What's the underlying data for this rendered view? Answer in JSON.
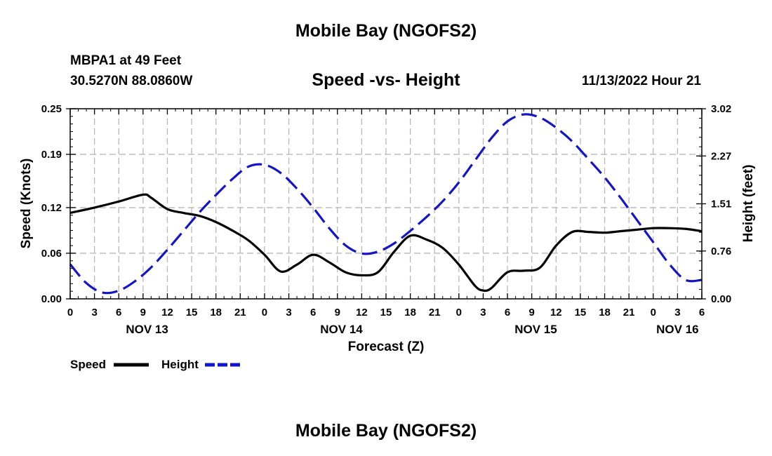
{
  "page": {
    "title": "Mobile Bay (NGOFS2)",
    "station": "MBPA1 at 49 Feet",
    "coordinates": "30.5270N  88.0860W",
    "subtitle": "Speed -vs- Height",
    "timestamp": "11/13/2022 Hour 21",
    "footer_title": "Mobile Bay (NGOFS2)"
  },
  "chart_data": {
    "type": "line",
    "title": "Speed -vs- Height",
    "xlabel": "Forecast (Z)",
    "ylabel": "Speed (Knots)",
    "y2label": "Height (feet)",
    "x_unit": "hours since Nov 13 00Z",
    "xlim": [
      0,
      78
    ],
    "ylim": [
      0,
      0.25
    ],
    "y2lim": [
      0,
      3.02
    ],
    "grid": true,
    "x_ticks": [
      0,
      3,
      6,
      9,
      12,
      15,
      18,
      21,
      24,
      27,
      30,
      33,
      36,
      39,
      42,
      45,
      48,
      51,
      54,
      57,
      60,
      63,
      66,
      69,
      72,
      75,
      78
    ],
    "x_tick_labels": [
      "0",
      "3",
      "6",
      "9",
      "12",
      "15",
      "18",
      "21",
      "0",
      "3",
      "6",
      "9",
      "12",
      "15",
      "18",
      "21",
      "0",
      "3",
      "6",
      "9",
      "12",
      "15",
      "18",
      "21",
      "0",
      "3",
      "6"
    ],
    "date_labels": [
      {
        "x": 9.5,
        "label": "NOV 13"
      },
      {
        "x": 33.5,
        "label": "NOV 14"
      },
      {
        "x": 57.5,
        "label": "NOV 15"
      },
      {
        "x": 75,
        "label": "NOV 16"
      }
    ],
    "y_ticks": [
      0,
      0.06,
      0.12,
      0.19,
      0.25
    ],
    "y_tick_labels": [
      "0.00",
      "0.06",
      "0.12",
      "0.19",
      "0.25"
    ],
    "y2_ticks": [
      0,
      0.76,
      1.51,
      2.27,
      3.02
    ],
    "y2_tick_labels": [
      "0.00",
      "0.76",
      "1.51",
      "2.27",
      "3.02"
    ],
    "legend_position": "bottom-left",
    "series": [
      {
        "name": "Speed",
        "axis": "left",
        "color": "#000000",
        "dash": "solid",
        "x": [
          0,
          3,
          6,
          9,
          10,
          12,
          14,
          16,
          18,
          20,
          22,
          24,
          26,
          28,
          30,
          32,
          34,
          36,
          38,
          40,
          42,
          44,
          46,
          48,
          50,
          51,
          52,
          54,
          56,
          58,
          60,
          62,
          64,
          66,
          68,
          70,
          72,
          74,
          76,
          78
        ],
        "values": [
          0.113,
          0.12,
          0.128,
          0.137,
          0.133,
          0.118,
          0.113,
          0.109,
          0.101,
          0.09,
          0.077,
          0.058,
          0.036,
          0.045,
          0.058,
          0.048,
          0.035,
          0.031,
          0.035,
          0.062,
          0.083,
          0.078,
          0.067,
          0.045,
          0.017,
          0.011,
          0.014,
          0.035,
          0.037,
          0.041,
          0.07,
          0.088,
          0.088,
          0.087,
          0.089,
          0.091,
          0.093,
          0.093,
          0.092,
          0.089
        ]
      },
      {
        "name": "Height",
        "axis": "right",
        "color": "#1515c8",
        "dash": "dashed",
        "x": [
          0,
          2,
          4,
          6,
          8,
          10,
          12,
          14,
          16,
          18,
          20,
          22,
          24,
          26,
          28,
          30,
          32,
          34,
          36,
          38,
          40,
          42,
          44,
          46,
          48,
          50,
          52,
          54,
          56,
          58,
          60,
          62,
          64,
          66,
          68,
          70,
          72,
          74,
          76,
          78
        ],
        "values": [
          0.55,
          0.25,
          0.1,
          0.13,
          0.28,
          0.5,
          0.78,
          1.08,
          1.38,
          1.65,
          1.9,
          2.1,
          2.13,
          2.0,
          1.75,
          1.45,
          1.12,
          0.85,
          0.72,
          0.75,
          0.88,
          1.08,
          1.3,
          1.55,
          1.85,
          2.2,
          2.55,
          2.82,
          2.93,
          2.88,
          2.72,
          2.5,
          2.22,
          1.93,
          1.6,
          1.25,
          0.9,
          0.55,
          0.3,
          0.3
        ]
      }
    ]
  }
}
